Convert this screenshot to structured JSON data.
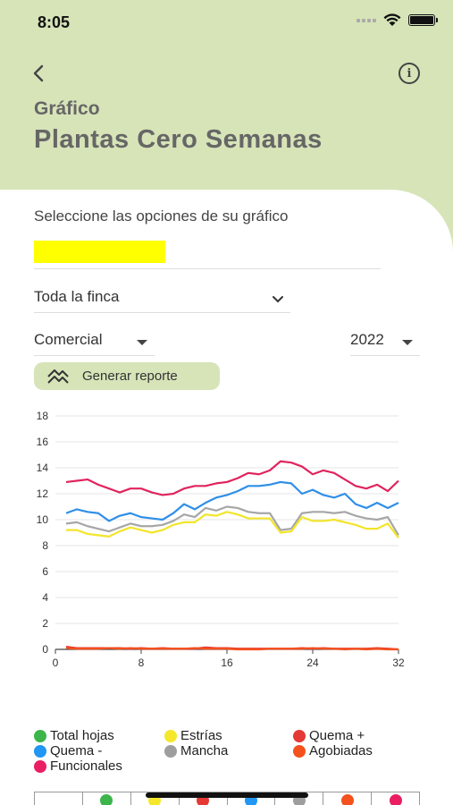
{
  "status": {
    "time": "8:05"
  },
  "header": {
    "subtitle": "Gráfico",
    "title": "Plantas Cero Semanas"
  },
  "form": {
    "instruction": "Seleccione las opciones de su gráfico",
    "farm_select": "Toda la finca",
    "type_select": "Comercial",
    "year_select": "2022",
    "generate_label": "Generar reporte"
  },
  "legend": [
    {
      "label": "Total hojas",
      "color": "#3cb54a"
    },
    {
      "label": "Estrías",
      "color": "#f5e72b"
    },
    {
      "label": "Quema +",
      "color": "#e53935"
    },
    {
      "label": "Quema -",
      "color": "#2196f3"
    },
    {
      "label": "Mancha",
      "color": "#9e9e9e"
    },
    {
      "label": "Agobiadas",
      "color": "#f4511e"
    },
    {
      "label": "Funcionales",
      "color": "#e91e63"
    }
  ],
  "table_dots": [
    "",
    "#3cb54a",
    "#f5e72b",
    "#e53935",
    "#2196f3",
    "#9e9e9e",
    "#f4511e",
    "#e91e63"
  ],
  "chart_data": {
    "type": "line",
    "xlim": [
      0,
      32
    ],
    "ylim": [
      0,
      18
    ],
    "x_ticks": [
      0,
      8,
      16,
      24,
      32
    ],
    "y_ticks": [
      0,
      2,
      4,
      6,
      8,
      10,
      12,
      14,
      16,
      18
    ],
    "x": [
      1,
      2,
      3,
      4,
      5,
      6,
      7,
      8,
      9,
      10,
      11,
      12,
      13,
      14,
      15,
      16,
      17,
      18,
      19,
      20,
      21,
      22,
      23,
      24,
      25,
      26,
      27,
      28,
      29,
      30,
      31,
      32
    ],
    "series": [
      {
        "name": "Funcionales",
        "color": "#e0245e",
        "values": [
          12.9,
          13.0,
          13.1,
          12.7,
          12.4,
          12.1,
          12.4,
          12.4,
          12.1,
          11.9,
          12.0,
          12.4,
          12.6,
          12.6,
          12.8,
          12.9,
          13.2,
          13.6,
          13.5,
          13.8,
          14.5,
          14.4,
          14.1,
          13.5,
          13.8,
          13.6,
          13.1,
          12.6,
          12.4,
          12.7,
          12.2,
          13.0
        ]
      },
      {
        "name": "Quema -",
        "color": "#2f8fe8",
        "values": [
          10.5,
          10.8,
          10.6,
          10.5,
          9.9,
          10.3,
          10.5,
          10.2,
          10.1,
          10.0,
          10.5,
          11.2,
          10.8,
          11.3,
          11.7,
          11.9,
          12.2,
          12.6,
          12.6,
          12.7,
          12.9,
          12.8,
          12.0,
          12.3,
          11.9,
          11.7,
          12.0,
          11.2,
          10.9,
          11.3,
          10.9,
          11.3
        ]
      },
      {
        "name": "Mancha",
        "color": "#a6a6a6",
        "values": [
          9.7,
          9.8,
          9.5,
          9.3,
          9.1,
          9.4,
          9.7,
          9.5,
          9.5,
          9.6,
          9.9,
          10.4,
          10.2,
          10.9,
          10.7,
          11.0,
          10.9,
          10.6,
          10.5,
          10.5,
          9.2,
          9.3,
          10.5,
          10.6,
          10.6,
          10.5,
          10.6,
          10.3,
          10.1,
          10.0,
          10.2,
          8.8
        ]
      },
      {
        "name": "Estrías",
        "color": "#f2e52a",
        "values": [
          9.2,
          9.2,
          8.9,
          8.8,
          8.7,
          9.1,
          9.4,
          9.2,
          9.0,
          9.2,
          9.6,
          9.8,
          9.8,
          10.4,
          10.3,
          10.6,
          10.4,
          10.1,
          10.1,
          10.1,
          9.0,
          9.1,
          10.2,
          9.9,
          9.9,
          10.0,
          9.8,
          9.6,
          9.3,
          9.3,
          9.7,
          8.6
        ]
      },
      {
        "name": "Quema +",
        "color": "#e53935",
        "values": [
          0.2,
          0.1,
          0.1,
          0.1,
          0.1,
          0.1,
          0.05,
          0.1,
          0.05,
          0.1,
          0.05,
          0.05,
          0.05,
          0.15,
          0.1,
          0.1,
          0.05,
          0.05,
          0.05,
          0.05,
          0.05,
          0.05,
          0.1,
          0.05,
          0.1,
          0.05,
          0.05,
          0.05,
          0.05,
          0.1,
          0.05,
          0.0
        ]
      },
      {
        "name": "Agobiadas",
        "color": "#f4511e",
        "values": [
          0.1,
          0.05,
          0.05,
          0.05,
          0.1,
          0.05,
          0.1,
          0.05,
          0.05,
          0.05,
          0.05,
          0.05,
          0.1,
          0.05,
          0.05,
          0.05,
          0.0,
          0.0,
          0.0,
          0.05,
          0.05,
          0.05,
          0.05,
          0.1,
          0.05,
          0.05,
          0.0,
          0.05,
          0.0,
          0.05,
          0.0,
          0.0
        ]
      }
    ]
  }
}
